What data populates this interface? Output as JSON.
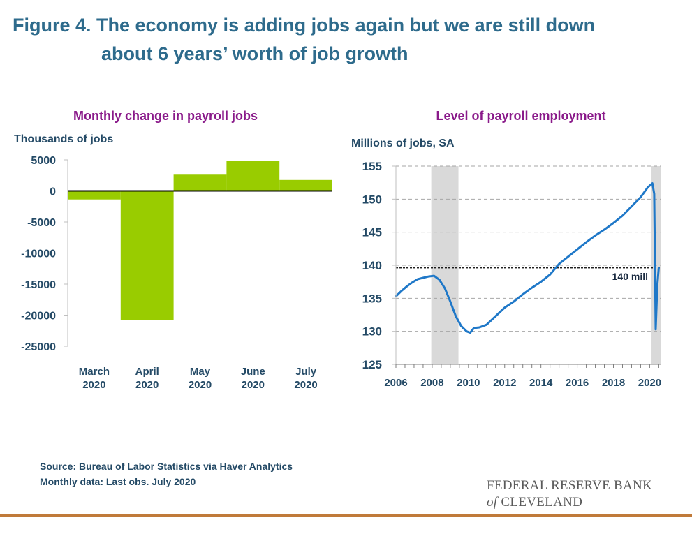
{
  "figure": {
    "title_line1": "Figure 4. The economy is adding jobs again but we are still down",
    "title_line2": "about 6 years’ worth of job growth"
  },
  "footer": {
    "source": "Source: Bureau of Labor Statistics via Haver Analytics",
    "note": "Monthly data: Last obs. July 2020",
    "logo_line1": "FEDERAL RESERVE BANK",
    "logo_of": "of",
    "logo_line2": "CLEVELAND"
  },
  "colors": {
    "title": "#2e6b8c",
    "subtitle": "#8a1a8a",
    "axis_text": "#244a66",
    "bar": "#99cc00",
    "line": "#1f78c8",
    "recession": "#d9d9d9",
    "rule": "#c07a3a"
  },
  "chart_data": [
    {
      "type": "bar",
      "title": "Monthly change in payroll jobs",
      "ylabel": "Thousands of jobs",
      "categories": [
        [
          "March",
          "2020"
        ],
        [
          "April",
          "2020"
        ],
        [
          "May",
          "2020"
        ],
        [
          "June",
          "2020"
        ],
        [
          "July",
          "2020"
        ]
      ],
      "values": [
        -1373,
        -20787,
        2725,
        4781,
        1763
      ],
      "ylim": [
        -25000,
        5000
      ],
      "yticks": [
        5000,
        0,
        -5000,
        -10000,
        -15000,
        -20000,
        -25000
      ],
      "ytick_labels": [
        "5000",
        "0",
        "-5000",
        "-10000",
        "-15000",
        "-20000",
        "-25000"
      ],
      "grid": false
    },
    {
      "type": "line",
      "title": "Level of payroll employment",
      "ylabel": "Millions of jobs, SA",
      "xlim": [
        2006,
        2020.6
      ],
      "ylim": [
        125,
        155
      ],
      "yticks": [
        125,
        130,
        135,
        140,
        145,
        150,
        155
      ],
      "xticks": [
        2006,
        2008,
        2010,
        2012,
        2014,
        2016,
        2018,
        2020
      ],
      "xtick_labels": [
        "2006",
        "2008",
        "2010",
        "2012",
        "2014",
        "2016",
        "2018",
        "2020"
      ],
      "grid": true,
      "recessions": [
        [
          2007.95,
          2009.45
        ],
        [
          2020.1,
          2020.6
        ]
      ],
      "reference_line": {
        "y": 139.6,
        "label": "140 mill"
      },
      "series": [
        {
          "x": [
            2006.0,
            2006.3,
            2006.6,
            2006.9,
            2007.2,
            2007.5,
            2007.8,
            2008.1,
            2008.4,
            2008.7,
            2009.0,
            2009.3,
            2009.6,
            2009.9,
            2010.1,
            2010.3,
            2010.6,
            2011.0,
            2011.5,
            2012.0,
            2012.5,
            2013.0,
            2013.5,
            2014.0,
            2014.5,
            2015.0,
            2015.5,
            2016.0,
            2016.5,
            2017.0,
            2017.5,
            2018.0,
            2018.5,
            2019.0,
            2019.5,
            2019.9,
            2020.15,
            2020.25,
            2020.33,
            2020.42,
            2020.5
          ],
          "y": [
            135.3,
            136.1,
            136.8,
            137.4,
            137.9,
            138.1,
            138.3,
            138.4,
            137.8,
            136.5,
            134.5,
            132.3,
            130.8,
            130.0,
            129.8,
            130.5,
            130.6,
            131.0,
            132.3,
            133.6,
            134.5,
            135.6,
            136.6,
            137.5,
            138.6,
            140.2,
            141.3,
            142.4,
            143.5,
            144.5,
            145.4,
            146.4,
            147.5,
            148.9,
            150.3,
            151.8,
            152.4,
            150.8,
            130.3,
            137.0,
            139.6
          ]
        }
      ]
    }
  ]
}
